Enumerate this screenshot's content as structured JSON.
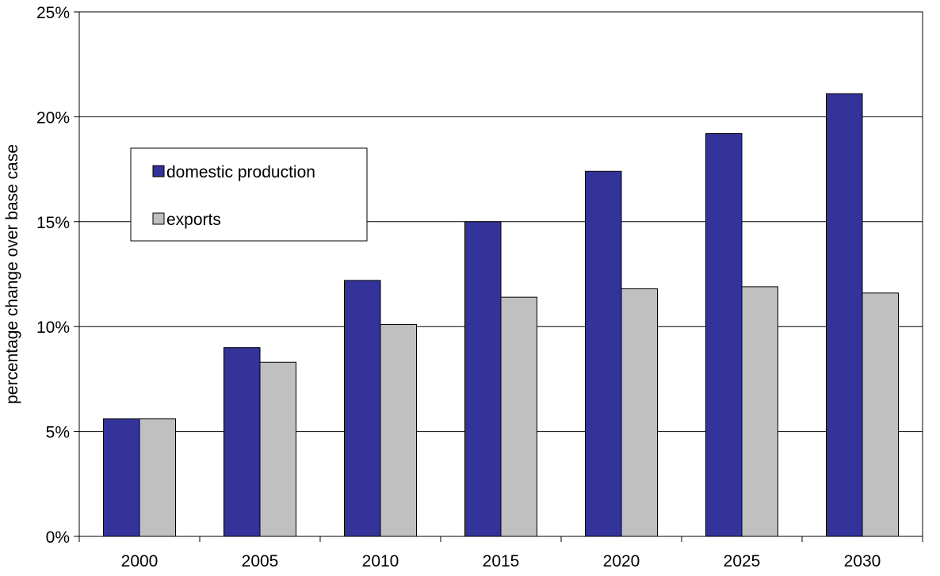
{
  "chart_data": {
    "type": "bar",
    "title": "",
    "xlabel": "",
    "ylabel": "percentage change over base case",
    "categories": [
      "2000",
      "2005",
      "2010",
      "2015",
      "2020",
      "2025",
      "2030"
    ],
    "series": [
      {
        "name": "domestic production",
        "color": "#333399",
        "values": [
          5.6,
          9.0,
          12.2,
          15.0,
          17.4,
          19.2,
          21.1
        ]
      },
      {
        "name": "exports",
        "color": "#c0c0c0",
        "values": [
          5.6,
          8.3,
          10.1,
          11.4,
          11.8,
          11.9,
          11.6
        ]
      }
    ],
    "ylim": [
      0,
      25
    ],
    "yticks": [
      0,
      5,
      10,
      15,
      20,
      25
    ],
    "ytick_labels": [
      "0%",
      "5%",
      "10%",
      "15%",
      "20%",
      "25%"
    ],
    "grid": true,
    "legend_position": "upper-left"
  }
}
